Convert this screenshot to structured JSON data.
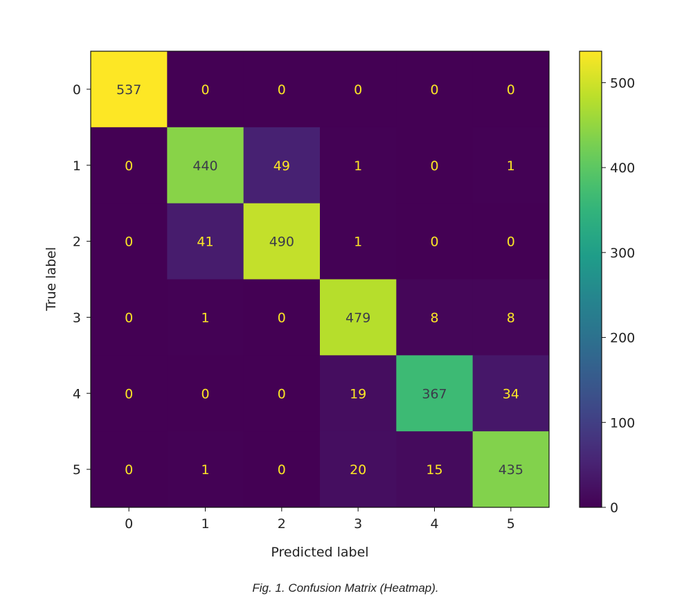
{
  "chart_data": {
    "type": "heatmap",
    "title": "",
    "xlabel": "Predicted label",
    "ylabel": "True label",
    "x_categories": [
      "0",
      "1",
      "2",
      "3",
      "4",
      "5"
    ],
    "y_categories": [
      "0",
      "1",
      "2",
      "3",
      "4",
      "5"
    ],
    "values": [
      [
        537,
        0,
        0,
        0,
        0,
        0
      ],
      [
        0,
        440,
        49,
        1,
        0,
        1
      ],
      [
        0,
        41,
        490,
        1,
        0,
        0
      ],
      [
        0,
        1,
        0,
        479,
        8,
        8
      ],
      [
        0,
        0,
        0,
        19,
        367,
        34
      ],
      [
        0,
        1,
        0,
        20,
        15,
        435
      ]
    ],
    "colormap": "viridis",
    "color_range": [
      0,
      537
    ],
    "colorbar_ticks": [
      0,
      100,
      200,
      300,
      400,
      500
    ],
    "grid": false
  },
  "caption": "Fig. 1. Confusion Matrix (Heatmap)."
}
